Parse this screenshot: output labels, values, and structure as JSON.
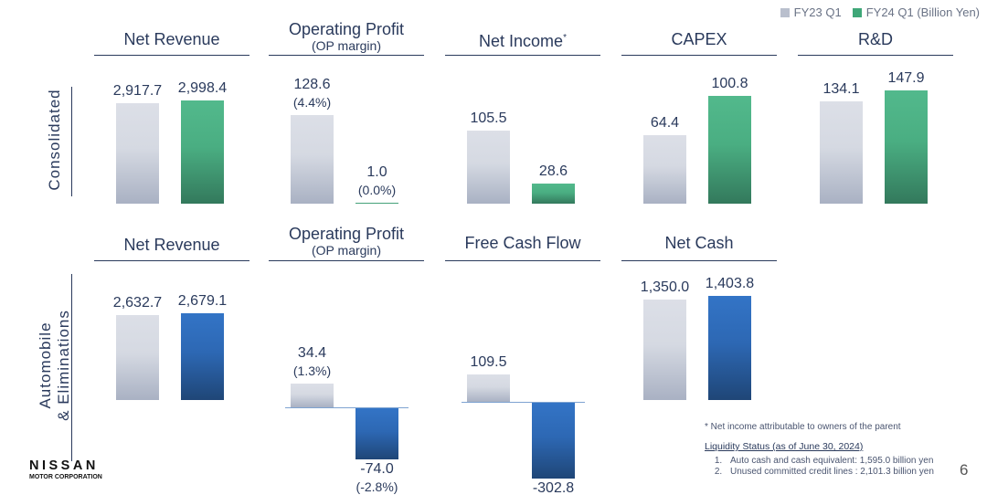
{
  "legend": {
    "items": [
      {
        "label": "FY23 Q1",
        "color": "#b9bfcd"
      },
      {
        "label": "FY24 Q1 (Billion Yen)",
        "color": "#3fa778"
      }
    ]
  },
  "side_labels": {
    "consolidated": "Consolidated",
    "auto_line1": "Automobile",
    "auto_line2": "& Eliminations"
  },
  "colors": {
    "prev": "#d5d9e2",
    "green": "#4aae82",
    "blue": "#2d68b4",
    "text": "#2a3a5c"
  },
  "chart_data": [
    {
      "type": "bar",
      "section": "Consolidated",
      "title": "Net Revenue",
      "subtitle": "",
      "categories": [
        "FY23 Q1",
        "FY24 Q1"
      ],
      "values": [
        2917.7,
        2998.4
      ],
      "labels": [
        "2,917.7",
        "2,998.4"
      ],
      "pct": [
        "",
        ""
      ],
      "color": "green"
    },
    {
      "type": "bar",
      "section": "Consolidated",
      "title": "Operating Profit",
      "subtitle": "(OP margin)",
      "categories": [
        "FY23 Q1",
        "FY24 Q1"
      ],
      "values": [
        128.6,
        1.0
      ],
      "labels": [
        "128.6",
        "1.0"
      ],
      "pct": [
        "(4.4%)",
        "(0.0%)"
      ],
      "color": "green"
    },
    {
      "type": "bar",
      "section": "Consolidated",
      "title": "Net Income",
      "title_mark": "*",
      "subtitle": "",
      "categories": [
        "FY23 Q1",
        "FY24 Q1"
      ],
      "values": [
        105.5,
        28.6
      ],
      "labels": [
        "105.5",
        "28.6"
      ],
      "pct": [
        "",
        ""
      ],
      "color": "green"
    },
    {
      "type": "bar",
      "section": "Consolidated",
      "title": "CAPEX",
      "subtitle": "",
      "categories": [
        "FY23 Q1",
        "FY24 Q1"
      ],
      "values": [
        64.4,
        100.8
      ],
      "labels": [
        "64.4",
        "100.8"
      ],
      "pct": [
        "",
        ""
      ],
      "color": "green"
    },
    {
      "type": "bar",
      "section": "Consolidated",
      "title": "R&D",
      "subtitle": "",
      "categories": [
        "FY23 Q1",
        "FY24 Q1"
      ],
      "values": [
        134.1,
        147.9
      ],
      "labels": [
        "134.1",
        "147.9"
      ],
      "pct": [
        "",
        ""
      ],
      "color": "green"
    },
    {
      "type": "bar",
      "section": "Automobile & Eliminations",
      "title": "Net Revenue",
      "subtitle": "",
      "categories": [
        "FY23 Q1",
        "FY24 Q1"
      ],
      "values": [
        2632.7,
        2679.1
      ],
      "labels": [
        "2,632.7",
        "2,679.1"
      ],
      "pct": [
        "",
        ""
      ],
      "color": "blue"
    },
    {
      "type": "bar",
      "section": "Automobile & Eliminations",
      "title": "Operating Profit",
      "subtitle": "(OP margin)",
      "categories": [
        "FY23 Q1",
        "FY24 Q1"
      ],
      "values": [
        34.4,
        -74.0
      ],
      "labels": [
        "34.4",
        "-74.0"
      ],
      "pct": [
        "(1.3%)",
        "(-2.8%)"
      ],
      "color": "blue"
    },
    {
      "type": "bar",
      "section": "Automobile & Eliminations",
      "title": "Free Cash Flow",
      "subtitle": "",
      "categories": [
        "FY23 Q1",
        "FY24 Q1"
      ],
      "values": [
        109.5,
        -302.8
      ],
      "labels": [
        "109.5",
        "-302.8"
      ],
      "pct": [
        "",
        ""
      ],
      "color": "blue"
    },
    {
      "type": "bar",
      "section": "Automobile & Eliminations",
      "title": "Net Cash",
      "subtitle": "",
      "categories": [
        "FY23 Q1",
        "FY24 Q1"
      ],
      "values": [
        1350.0,
        1403.8
      ],
      "labels": [
        "1,350.0",
        "1,403.8"
      ],
      "pct": [
        "",
        ""
      ],
      "color": "blue"
    }
  ],
  "notes": {
    "footnote": "* Net income attributable to owners of the parent",
    "liquidity_title": "Liquidity Status (as of June 30, 2024)",
    "items": [
      "Auto cash and cash equivalent: 1,595.0 billion yen",
      "Unused committed credit lines : 2,101.3 billion yen"
    ]
  },
  "logo": {
    "name": "NISSAN",
    "sub": "MOTOR CORPORATION"
  },
  "page_number": "6"
}
